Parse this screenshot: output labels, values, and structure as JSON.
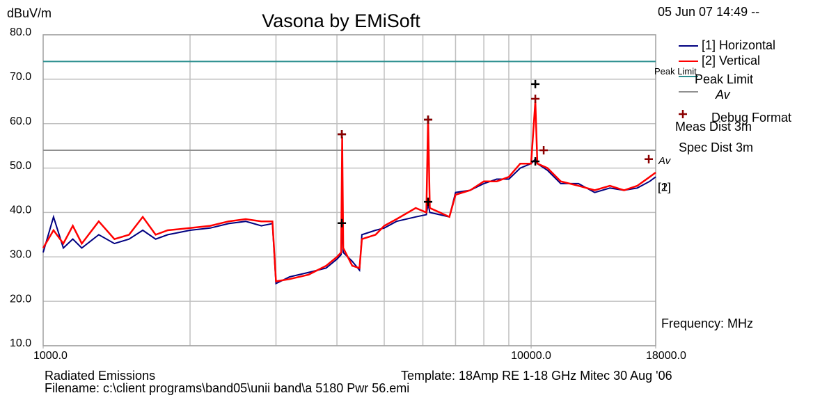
{
  "chart_data": {
    "type": "line",
    "title": "Vasona by EMiSoft",
    "y_label": "dBuV/m",
    "x_label": "Frequency: MHz",
    "date": "05 Jun 07 14:49 --",
    "xscale": "log",
    "xlim": [
      1000,
      18000
    ],
    "xticks": [
      {
        "value": 1000,
        "label": "1000.0"
      },
      {
        "value": 10000,
        "label": "10000.0"
      },
      {
        "value": 18000,
        "label": "18000.0"
      }
    ],
    "xgrid": [
      2000,
      3000,
      4000,
      5000,
      6000,
      7000,
      8000,
      9000,
      10000
    ],
    "ylim": [
      10,
      80
    ],
    "yticks": [
      {
        "value": 10,
        "label": "10.0"
      },
      {
        "value": 20,
        "label": "20.0"
      },
      {
        "value": 30,
        "label": "30.0"
      },
      {
        "value": 40,
        "label": "40.0"
      },
      {
        "value": 50,
        "label": "50.0"
      },
      {
        "value": 60,
        "label": "60.0"
      },
      {
        "value": 70,
        "label": "70.0"
      },
      {
        "value": 80,
        "label": "80.0"
      }
    ],
    "grid": true,
    "x": [
      1000,
      1050,
      1100,
      1150,
      1200,
      1300,
      1400,
      1500,
      1600,
      1700,
      1800,
      2000,
      2200,
      2400,
      2600,
      2800,
      2950,
      3000,
      3200,
      3500,
      3800,
      4000,
      4080,
      4100,
      4120,
      4300,
      4450,
      4500,
      4800,
      5000,
      5300,
      5800,
      6100,
      6150,
      6200,
      6500,
      6800,
      7000,
      7500,
      8000,
      8500,
      9000,
      9500,
      10000,
      10200,
      10300,
      10800,
      11500,
      12500,
      13500,
      14500,
      15500,
      16500,
      17500,
      18000
    ],
    "series": [
      {
        "name": "[1] Horizontal",
        "color": "#000080",
        "values": [
          31,
          39,
          32,
          34,
          32,
          35,
          33,
          34,
          36,
          34,
          35,
          36,
          36.5,
          37.5,
          38,
          37,
          37.5,
          24,
          25.5,
          26.5,
          27.5,
          29.5,
          30.5,
          38,
          31,
          29,
          27,
          35,
          36,
          36.5,
          38,
          39,
          39.5,
          42,
          40,
          39.5,
          39,
          44.5,
          45,
          46.5,
          47.5,
          47.5,
          50,
          51,
          52,
          51,
          49.5,
          46.5,
          46.5,
          44.5,
          45.5,
          45,
          45.5,
          47,
          48
        ]
      },
      {
        "name": "[2] Vertical",
        "color": "#ff0000",
        "values": [
          32,
          36,
          33,
          37,
          33,
          38,
          34,
          35,
          39,
          35,
          36,
          36.5,
          37,
          38,
          38.5,
          38,
          38,
          24.5,
          25,
          26,
          28,
          30,
          31,
          57,
          32,
          28,
          27.5,
          34,
          35,
          37,
          38.5,
          41,
          40,
          61,
          41,
          40,
          39,
          44,
          45,
          47,
          47,
          48,
          51,
          51,
          65,
          51,
          50,
          47,
          46,
          45,
          46,
          45,
          46,
          48,
          49
        ]
      }
    ],
    "end_labels": [
      "[1]",
      "[2]"
    ],
    "limits": [
      {
        "name": "Peak Limit",
        "color": "#2e9090",
        "value": 74
      },
      {
        "name": "Av",
        "color": "#909090",
        "value": 54
      }
    ],
    "markers": [
      {
        "color": "#000000",
        "x": [
          4093,
          4093,
          6150,
          6150,
          10200,
          10200
        ],
        "y": [
          57.6,
          37.6,
          60.9,
          42.4,
          68.9,
          51.5
        ]
      },
      {
        "name": "Debug Format",
        "color": "#8b0000",
        "x": [
          4093,
          6150,
          10200,
          10610,
          17420
        ],
        "y": [
          57.6,
          60.9,
          65.6,
          54,
          52
        ]
      }
    ],
    "info": [
      "Meas Dist 3m",
      "Spec Dist 3m"
    ],
    "footer": {
      "left": "Radiated Emissions",
      "template": "Template: 18Amp RE 1-18 GHz Mitec 30 Aug '06",
      "filename": "Filename: c:\\client programs\\band05\\unii band\\a 5180 Pwr 56.emi"
    }
  }
}
